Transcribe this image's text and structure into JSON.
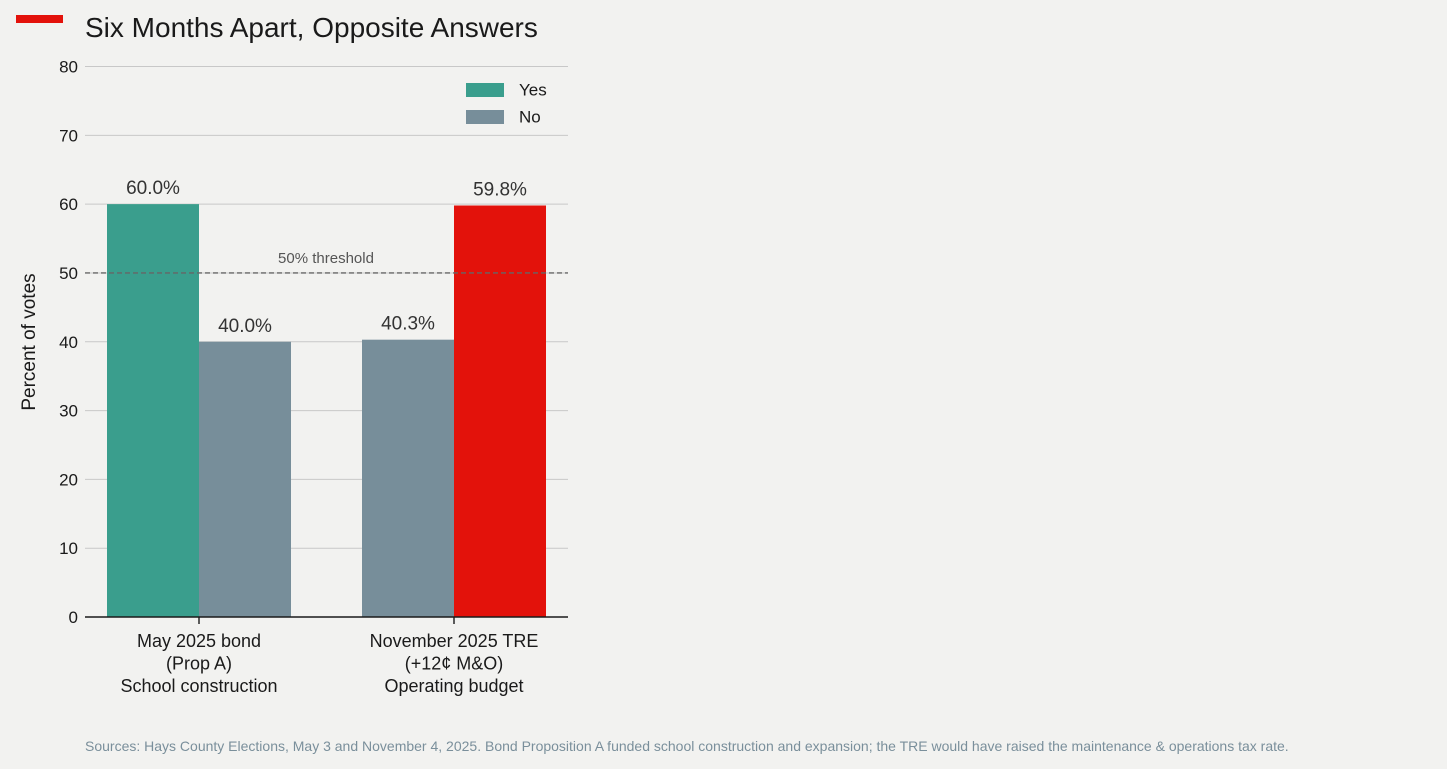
{
  "header": {
    "title": "Six Months Apart, Opposite Answers",
    "accent_color": "#e3120b"
  },
  "chart_data": {
    "type": "bar",
    "title": "Six Months Apart, Opposite Answers",
    "ylabel": "Percent of votes",
    "xlabel": "",
    "ylim": [
      0,
      80
    ],
    "yticks": [
      0,
      10,
      20,
      30,
      40,
      50,
      60,
      70,
      80
    ],
    "grid": true,
    "legend_position": "top-right",
    "categories": [
      [
        "May 2025 bond",
        "(Prop A)",
        "School construction"
      ],
      [
        "November 2025 TRE",
        "(+12¢ M&O)",
        "Operating budget"
      ]
    ],
    "series": [
      {
        "name": "Yes",
        "values": [
          60.0,
          40.3
        ],
        "labels": [
          "60.0%",
          "40.3%"
        ]
      },
      {
        "name": "No",
        "values": [
          40.0,
          59.8
        ],
        "labels": [
          "40.0%",
          "59.8%"
        ]
      }
    ],
    "bar_colors": [
      [
        "#3a9e8d",
        "#778e9a"
      ],
      [
        "#778e9a",
        "#e3120b"
      ]
    ],
    "legend": [
      {
        "label": "Yes",
        "color": "#3a9e8d"
      },
      {
        "label": "No",
        "color": "#778e9a"
      }
    ],
    "threshold": {
      "value": 50,
      "label": "50% threshold"
    },
    "source": "Sources: Hays County Elections, May 3 and November 4, 2025. Bond Proposition A funded school construction and expansion; the TRE would have raised the maintenance & operations tax rate."
  }
}
